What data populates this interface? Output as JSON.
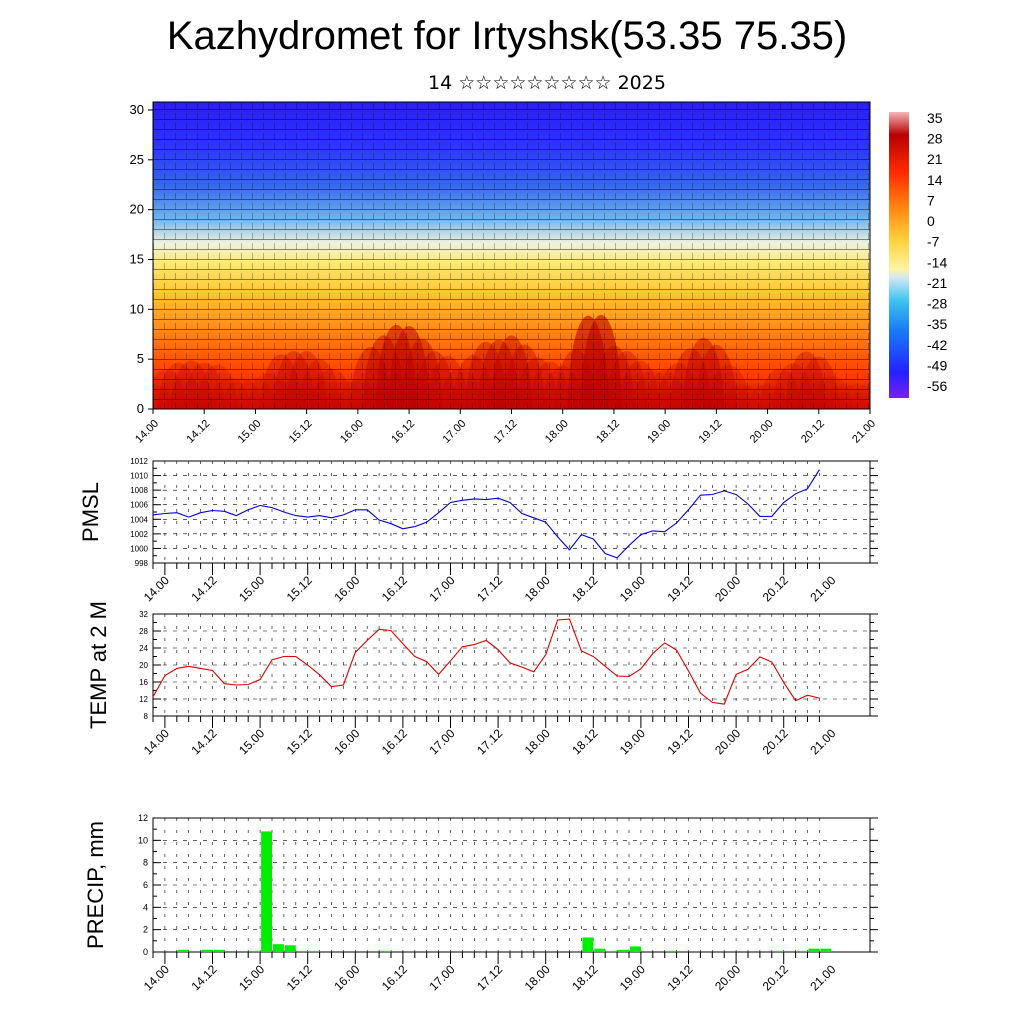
{
  "page": {
    "title": "Kazhydromet for Irtyshsk(53.35 75.35)",
    "subtitle": "14 ☆☆☆☆☆☆☆☆☆ 2025"
  },
  "time_labels": [
    "14.00",
    "14.12",
    "15.00",
    "15.12",
    "16.00",
    "16.12",
    "17.00",
    "17.12",
    "18.00",
    "18.12",
    "19.00",
    "19.12",
    "20.00",
    "20.12",
    "21.00"
  ],
  "chart_data": [
    {
      "type": "heatmap",
      "title": "Kazhydromet for Irtyshsk(53.35 75.35)",
      "subtitle": "14 ☆☆☆☆☆☆☆☆☆ 2025",
      "xlabel": "",
      "ylabel": "",
      "x_ticks": [
        "14.00",
        "14.12",
        "15.00",
        "15.12",
        "16.00",
        "16.12",
        "17.00",
        "17.12",
        "18.00",
        "18.12",
        "19.00",
        "19.12",
        "20.00",
        "20.12",
        "21.00"
      ],
      "y_ticks": [
        0,
        5,
        10,
        15,
        20,
        25,
        30
      ],
      "ylim": [
        0,
        30.8
      ],
      "colorbar_ticks": [
        35,
        28,
        21,
        14,
        7,
        0,
        -7,
        -14,
        -21,
        -28,
        -35,
        -42,
        -49,
        -56
      ],
      "colorscale": "blue-white-yellow-red",
      "overlay": "wind barbs",
      "surface_temp_by_step": [
        12.5,
        17.5,
        19.2,
        19.7,
        19.2,
        18.7,
        15.6,
        15.3,
        15.4,
        16.6,
        21.2,
        22.0,
        22.0,
        20.0,
        17.7,
        14.9,
        15.3,
        23.0,
        25.8,
        28.4,
        28.1,
        25.0,
        22.0,
        20.8,
        17.8,
        21.0,
        24.3,
        24.8,
        25.8,
        23.6,
        20.5,
        19.5,
        18.4,
        22.4,
        30.6,
        30.8,
        23.3,
        22.0,
        19.7,
        17.4,
        17.3,
        19.1,
        22.7,
        25.2,
        23.5,
        18.6,
        13.4,
        11.2,
        10.8,
        17.8,
        19.0,
        21.9,
        20.7,
        15.9,
        11.6,
        12.9,
        12.2
      ]
    },
    {
      "type": "line",
      "ylabel": "PMSL",
      "ylim": [
        998,
        1012
      ],
      "y_ticks": [
        998,
        1000,
        1002,
        1004,
        1006,
        1008,
        1010,
        1012
      ],
      "x_ticks": [
        "14.00",
        "14.12",
        "15.00",
        "15.12",
        "16.00",
        "16.12",
        "17.00",
        "17.12",
        "18.00",
        "18.12",
        "19.00",
        "19.12",
        "20.00",
        "20.12",
        "21.00"
      ],
      "x_step_hours": 3,
      "series": [
        {
          "color": "#0000dd",
          "values": [
            1004.6,
            1004.8,
            1004.9,
            1004.3,
            1004.9,
            1005.2,
            1005.1,
            1004.5,
            1005.3,
            1005.9,
            1005.6,
            1005.0,
            1004.5,
            1004.3,
            1004.5,
            1004.2,
            1004.6,
            1005.3,
            1005.3,
            1003.9,
            1003.4,
            1002.7,
            1003.0,
            1003.6,
            1004.9,
            1006.3,
            1006.6,
            1006.8,
            1006.7,
            1006.9,
            1006.3,
            1004.8,
            1004.2,
            1003.6,
            1001.6,
            999.8,
            1001.9,
            1001.3,
            999.3,
            998.7,
            1000.4,
            1001.9,
            1002.4,
            1002.3,
            1003.5,
            1005.3,
            1007.3,
            1007.4,
            1007.9,
            1007.4,
            1006.1,
            1004.4,
            1004.4,
            1006.3,
            1007.5,
            1008.2,
            1010.8
          ]
        }
      ]
    },
    {
      "type": "line",
      "ylabel": "TEMP at 2 M",
      "ylim": [
        8,
        32
      ],
      "y_ticks": [
        8,
        12,
        16,
        20,
        24,
        28,
        32
      ],
      "x_ticks": [
        "14.00",
        "14.12",
        "15.00",
        "15.12",
        "16.00",
        "16.12",
        "17.00",
        "17.12",
        "18.00",
        "18.12",
        "19.00",
        "19.12",
        "20.00",
        "20.12",
        "21.00"
      ],
      "x_step_hours": 3,
      "series": [
        {
          "color": "#dd0000",
          "values": [
            12.5,
            17.5,
            19.2,
            19.7,
            19.2,
            18.7,
            15.6,
            15.3,
            15.4,
            16.6,
            21.2,
            22.0,
            22.0,
            20.0,
            17.7,
            14.9,
            15.3,
            23.0,
            25.8,
            28.4,
            28.1,
            25.0,
            22.0,
            20.8,
            17.8,
            21.0,
            24.3,
            24.8,
            25.8,
            23.6,
            20.5,
            19.5,
            18.4,
            22.4,
            30.6,
            30.8,
            23.3,
            22.0,
            19.7,
            17.4,
            17.3,
            19.1,
            22.7,
            25.2,
            23.5,
            18.6,
            13.4,
            11.2,
            10.8,
            17.8,
            19.0,
            21.9,
            20.7,
            15.9,
            11.6,
            12.9,
            12.2
          ]
        }
      ]
    },
    {
      "type": "bar",
      "ylabel": "PRECIP, mm",
      "ylim": [
        0,
        12
      ],
      "y_ticks": [
        0,
        2,
        4,
        6,
        8,
        10,
        12
      ],
      "x_ticks": [
        "14.00",
        "14.12",
        "15.00",
        "15.12",
        "16.00",
        "16.12",
        "17.00",
        "17.12",
        "18.00",
        "18.12",
        "19.00",
        "19.12",
        "20.00",
        "20.12",
        "21.00"
      ],
      "x_step_hours": 3,
      "bar_color": "#00ee00",
      "values": [
        0,
        0,
        0.2,
        0,
        0.2,
        0.2,
        0,
        0,
        0.1,
        10.8,
        0.7,
        0.6,
        0.1,
        0.1,
        0,
        0,
        0,
        0,
        0,
        0.1,
        0,
        0,
        0,
        0,
        0,
        0,
        0,
        0,
        0,
        0,
        0,
        0,
        0,
        0,
        0,
        0,
        1.3,
        0.3,
        0.1,
        0.2,
        0.5,
        0,
        0,
        0.1,
        0,
        0,
        0,
        0,
        0,
        0,
        0,
        0,
        0.1,
        0,
        0.1,
        0.3,
        0.3
      ]
    }
  ]
}
